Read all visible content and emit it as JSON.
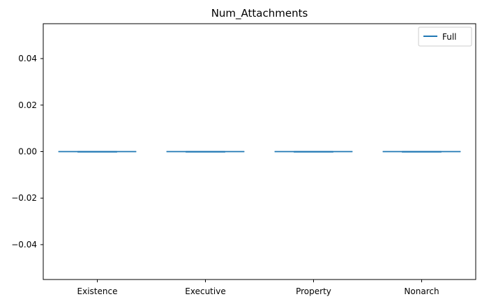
{
  "chart_data": {
    "type": "box",
    "title": "Num_Attachments",
    "xlabel": "",
    "ylabel": "",
    "categories": [
      "Existence",
      "Executive",
      "Property",
      "Nonarch"
    ],
    "ylim": [
      -0.055,
      0.055
    ],
    "yticks": [
      -0.04,
      -0.02,
      0.0,
      0.02,
      0.04
    ],
    "ytick_labels": [
      "−0.04",
      "−0.02",
      "0.00",
      "0.02",
      "0.04"
    ],
    "series": [
      {
        "name": "Full",
        "color": "#1f77b4",
        "boxes": [
          {
            "category": "Existence",
            "min": 0.0,
            "q1": 0.0,
            "median": 0.0,
            "q3": 0.0,
            "max": 0.0
          },
          {
            "category": "Executive",
            "min": 0.0,
            "q1": 0.0,
            "median": 0.0,
            "q3": 0.0,
            "max": 0.0
          },
          {
            "category": "Property",
            "min": 0.0,
            "q1": 0.0,
            "median": 0.0,
            "q3": 0.0,
            "max": 0.0
          },
          {
            "category": "Nonarch",
            "min": 0.0,
            "q1": 0.0,
            "median": 0.0,
            "q3": 0.0,
            "max": 0.0
          }
        ]
      }
    ],
    "legend": {
      "position": "top-right",
      "entries": [
        "Full"
      ]
    },
    "grid": false
  }
}
